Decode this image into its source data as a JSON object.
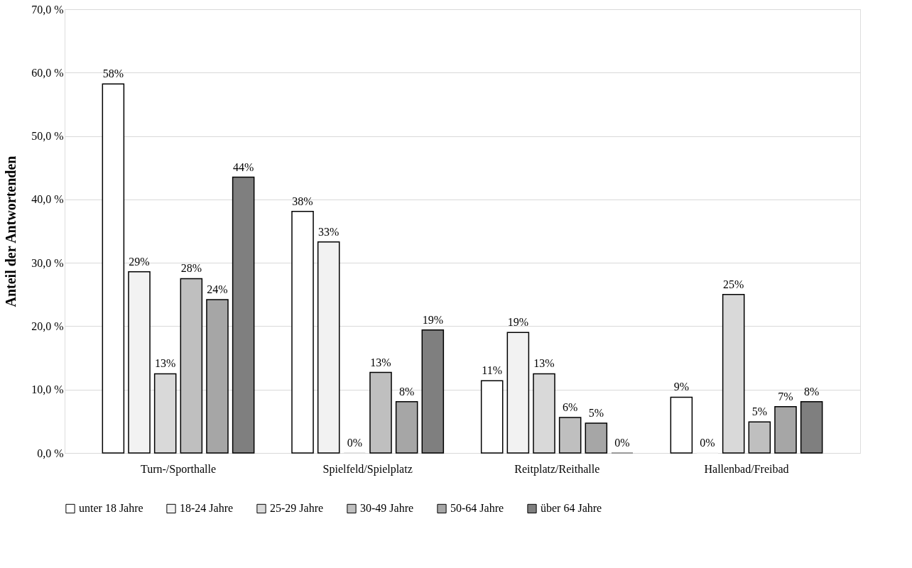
{
  "chart_data": {
    "type": "bar",
    "ylabel": "Anteil der Antwortenden",
    "categories": [
      "Turn-/Sporthalle",
      "Spielfeld/Spielplatz",
      "Reitplatz/Reithalle",
      "Hallenbad/Freibad"
    ],
    "series": [
      {
        "name": "unter 18 Jahre",
        "color": "#ffffff",
        "values": [
          58.2,
          38.1,
          11.4,
          8.8
        ],
        "value_labels": [
          "58%",
          "38%",
          "11%",
          "9%"
        ]
      },
      {
        "name": "18-24 Jahre",
        "color": "#f2f2f2",
        "values": [
          28.6,
          33.3,
          19.0,
          0
        ],
        "value_labels": [
          "29%",
          "33%",
          "19%",
          "0%"
        ]
      },
      {
        "name": "25-29 Jahre",
        "color": "#d9d9d9",
        "values": [
          12.5,
          0,
          12.5,
          25.0
        ],
        "value_labels": [
          "13%",
          "0%",
          "13%",
          "25%"
        ]
      },
      {
        "name": "30-49 Jahre",
        "color": "#bfbfbf",
        "values": [
          27.5,
          12.7,
          5.6,
          4.9
        ],
        "value_labels": [
          "28%",
          "13%",
          "6%",
          "5%"
        ]
      },
      {
        "name": "50-64 Jahre",
        "color": "#a6a6a6",
        "values": [
          24.2,
          8.1,
          4.7,
          7.3
        ],
        "value_labels": [
          "24%",
          "8%",
          "5%",
          "7%"
        ]
      },
      {
        "name": "über 64 Jahre",
        "color": "#7f7f7f",
        "values": [
          43.5,
          19.4,
          0,
          8.1
        ],
        "value_labels": [
          "44%",
          "19%",
          "0%",
          "8%"
        ]
      }
    ],
    "ylim": [
      0,
      70
    ],
    "yticks": [
      {
        "value": 0,
        "label": "0,0 %"
      },
      {
        "value": 10,
        "label": "10,0 %"
      },
      {
        "value": 20,
        "label": "20,0 %"
      },
      {
        "value": 30,
        "label": "30,0 %"
      },
      {
        "value": 40,
        "label": "40,0 %"
      },
      {
        "value": 50,
        "label": "50,0 %"
      },
      {
        "value": 60,
        "label": "60,0 %"
      },
      {
        "value": 70,
        "label": "70,0 %"
      }
    ],
    "grid": "y",
    "legend": "bottom"
  }
}
